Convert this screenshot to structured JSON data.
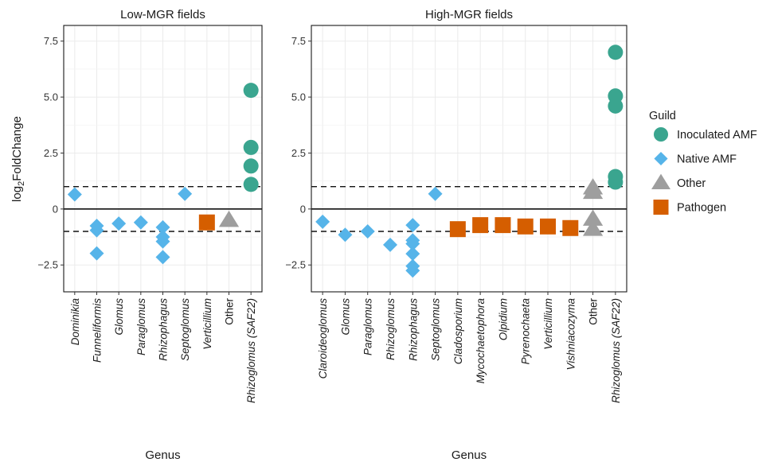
{
  "chart_data": {
    "type": "scatter",
    "y_axis_label_main": "log",
    "y_axis_label_sub": "2",
    "y_axis_label_rest": "FoldChange",
    "x_axis_label": "Genus",
    "y_ticks": [
      -2.5,
      0,
      2.5,
      5,
      7.5
    ],
    "y_tick_labels": [
      "−2.5",
      "0",
      "2.5",
      "5.0",
      "7.5"
    ],
    "ylim": [
      -3.7,
      8.2
    ],
    "reference_lines": {
      "solid": [
        0
      ],
      "dashed": [
        -1,
        1
      ]
    },
    "grid": true,
    "legend": {
      "title": "Guild",
      "position": "right",
      "entries": [
        {
          "key": "inoculated",
          "label": "Inoculated AMF",
          "shape": "circle",
          "color": "#3aa58f"
        },
        {
          "key": "native",
          "label": "Native AMF",
          "shape": "diamond",
          "color": "#56b4e9"
        },
        {
          "key": "other",
          "label": "Other",
          "shape": "triangle",
          "color": "#9e9e9e"
        },
        {
          "key": "pathogen",
          "label": "Pathogen",
          "shape": "square",
          "color": "#d55e00"
        }
      ]
    },
    "panels": [
      {
        "key": "low",
        "title": "Low-MGR fields",
        "categories": [
          {
            "label": "Dominikia",
            "italic": true
          },
          {
            "label": "Funneliformis",
            "italic": true
          },
          {
            "label": "Glomus",
            "italic": true
          },
          {
            "label": "Paraglomus",
            "italic": true
          },
          {
            "label": "Rhizophagus",
            "italic": true
          },
          {
            "label": "Septoglomus",
            "italic": true
          },
          {
            "label": "Verticillium",
            "italic": true
          },
          {
            "label": "Other",
            "italic": false
          },
          {
            "label": "Rhizoglomus (SAF22)",
            "italic": true
          }
        ],
        "points": [
          {
            "cat": 0,
            "y": 0.65,
            "guild": "native"
          },
          {
            "cat": 1,
            "y": -0.75,
            "guild": "native"
          },
          {
            "cat": 1,
            "y": -0.95,
            "guild": "native"
          },
          {
            "cat": 1,
            "y": -1.98,
            "guild": "native"
          },
          {
            "cat": 2,
            "y": -0.65,
            "guild": "native"
          },
          {
            "cat": 3,
            "y": -0.6,
            "guild": "native"
          },
          {
            "cat": 4,
            "y": -0.82,
            "guild": "native"
          },
          {
            "cat": 4,
            "y": -1.25,
            "guild": "native"
          },
          {
            "cat": 4,
            "y": -1.45,
            "guild": "native"
          },
          {
            "cat": 4,
            "y": -2.15,
            "guild": "native"
          },
          {
            "cat": 5,
            "y": 0.68,
            "guild": "native"
          },
          {
            "cat": 6,
            "y": -0.6,
            "guild": "pathogen"
          },
          {
            "cat": 7,
            "y": -0.5,
            "guild": "other"
          },
          {
            "cat": 8,
            "y": 5.3,
            "guild": "inoculated"
          },
          {
            "cat": 8,
            "y": 2.75,
            "guild": "inoculated"
          },
          {
            "cat": 8,
            "y": 1.92,
            "guild": "inoculated"
          },
          {
            "cat": 8,
            "y": 1.1,
            "guild": "inoculated"
          }
        ]
      },
      {
        "key": "high",
        "title": "High-MGR fields",
        "categories": [
          {
            "label": "Claroideoglomus",
            "italic": true
          },
          {
            "label": "Glomus",
            "italic": true
          },
          {
            "label": "Paraglomus",
            "italic": true
          },
          {
            "label": "Rhizoglomus",
            "italic": true
          },
          {
            "label": "Rhizophagus",
            "italic": true
          },
          {
            "label": "Septoglomus",
            "italic": true
          },
          {
            "label": "Cladosporium",
            "italic": true
          },
          {
            "label": "Mycochaetophora",
            "italic": true
          },
          {
            "label": "Olpidium",
            "italic": true
          },
          {
            "label": "Pyrenochaeta",
            "italic": true
          },
          {
            "label": "Verticillium",
            "italic": true
          },
          {
            "label": "Vishniacozyma",
            "italic": true
          },
          {
            "label": "Other",
            "italic": false
          },
          {
            "label": "Rhizoglomus (SAF22)",
            "italic": true
          }
        ],
        "points": [
          {
            "cat": 0,
            "y": -0.57,
            "guild": "native"
          },
          {
            "cat": 1,
            "y": -1.15,
            "guild": "native"
          },
          {
            "cat": 2,
            "y": -1.0,
            "guild": "native"
          },
          {
            "cat": 3,
            "y": -1.6,
            "guild": "native"
          },
          {
            "cat": 4,
            "y": -0.72,
            "guild": "native"
          },
          {
            "cat": 4,
            "y": -1.4,
            "guild": "native"
          },
          {
            "cat": 4,
            "y": -1.55,
            "guild": "native"
          },
          {
            "cat": 4,
            "y": -2.0,
            "guild": "native"
          },
          {
            "cat": 4,
            "y": -2.55,
            "guild": "native"
          },
          {
            "cat": 4,
            "y": -2.75,
            "guild": "native"
          },
          {
            "cat": 5,
            "y": 0.68,
            "guild": "native"
          },
          {
            "cat": 6,
            "y": -0.9,
            "guild": "pathogen"
          },
          {
            "cat": 7,
            "y": -0.72,
            "guild": "pathogen"
          },
          {
            "cat": 8,
            "y": -0.72,
            "guild": "pathogen"
          },
          {
            "cat": 9,
            "y": -0.78,
            "guild": "pathogen"
          },
          {
            "cat": 10,
            "y": -0.78,
            "guild": "pathogen"
          },
          {
            "cat": 11,
            "y": -0.85,
            "guild": "pathogen"
          },
          {
            "cat": 12,
            "y": 0.95,
            "guild": "other"
          },
          {
            "cat": 12,
            "y": 0.75,
            "guild": "other"
          },
          {
            "cat": 12,
            "y": -0.45,
            "guild": "other"
          },
          {
            "cat": 12,
            "y": -0.9,
            "guild": "other"
          },
          {
            "cat": 13,
            "y": 7.0,
            "guild": "inoculated"
          },
          {
            "cat": 13,
            "y": 5.05,
            "guild": "inoculated"
          },
          {
            "cat": 13,
            "y": 4.6,
            "guild": "inoculated"
          },
          {
            "cat": 13,
            "y": 1.45,
            "guild": "inoculated"
          },
          {
            "cat": 13,
            "y": 1.2,
            "guild": "inoculated"
          }
        ]
      }
    ]
  }
}
